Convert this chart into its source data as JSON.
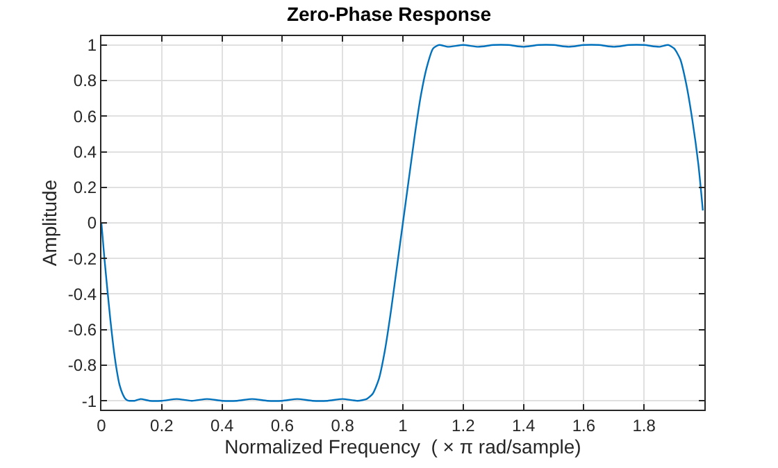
{
  "chart_data": {
    "type": "line",
    "title": "Zero-Phase Response",
    "xlabel": "Normalized Frequency  ( × π rad/sample)",
    "ylabel": "Amplitude",
    "x": [
      0,
      0.01,
      0.02,
      0.03,
      0.04,
      0.05,
      0.06,
      0.07,
      0.08,
      0.09,
      0.1,
      0.11,
      0.13,
      0.16,
      0.2,
      0.25,
      0.3,
      0.35,
      0.4,
      0.45,
      0.5,
      0.55,
      0.6,
      0.65,
      0.7,
      0.75,
      0.8,
      0.85,
      0.88,
      0.9,
      0.92,
      0.94,
      0.96,
      0.98,
      1.0,
      1.02,
      1.04,
      1.06,
      1.08,
      1.1,
      1.12,
      1.15,
      1.2,
      1.25,
      1.3,
      1.35,
      1.4,
      1.45,
      1.5,
      1.55,
      1.6,
      1.65,
      1.7,
      1.75,
      1.8,
      1.85,
      1.88,
      1.9,
      1.92,
      1.94,
      1.96,
      1.98,
      1.995
    ],
    "series": [
      {
        "color": "#0072bd",
        "values": [
          0,
          -0.2,
          -0.38,
          -0.55,
          -0.7,
          -0.82,
          -0.91,
          -0.96,
          -0.99,
          -1.0,
          -1.0,
          -1.0,
          -0.99,
          -1.0,
          -1.0,
          -0.99,
          -1.0,
          -0.99,
          -1.0,
          -1.0,
          -0.99,
          -1.0,
          -1.0,
          -0.99,
          -1.0,
          -1.0,
          -0.99,
          -1.0,
          -0.99,
          -0.96,
          -0.88,
          -0.72,
          -0.5,
          -0.25,
          0,
          0.25,
          0.5,
          0.72,
          0.88,
          0.98,
          1.0,
          0.99,
          1.0,
          0.99,
          1.0,
          1.0,
          0.99,
          1.0,
          1.0,
          0.99,
          1.0,
          1.0,
          0.99,
          1.0,
          1.0,
          0.99,
          1.0,
          0.98,
          0.92,
          0.78,
          0.58,
          0.33,
          0.07
        ]
      }
    ],
    "xlim": [
      0,
      2
    ],
    "xticks": [
      0,
      0.2,
      0.4,
      0.6,
      0.8,
      1,
      1.2,
      1.4,
      1.6,
      1.8
    ],
    "ylim": [
      -1.05,
      1.05
    ],
    "yticks": [
      -1,
      -0.8,
      -0.6,
      -0.4,
      -0.2,
      0,
      0.2,
      0.4,
      0.6,
      0.8,
      1
    ],
    "grid": true,
    "marker": "none",
    "line_style": "solid"
  }
}
